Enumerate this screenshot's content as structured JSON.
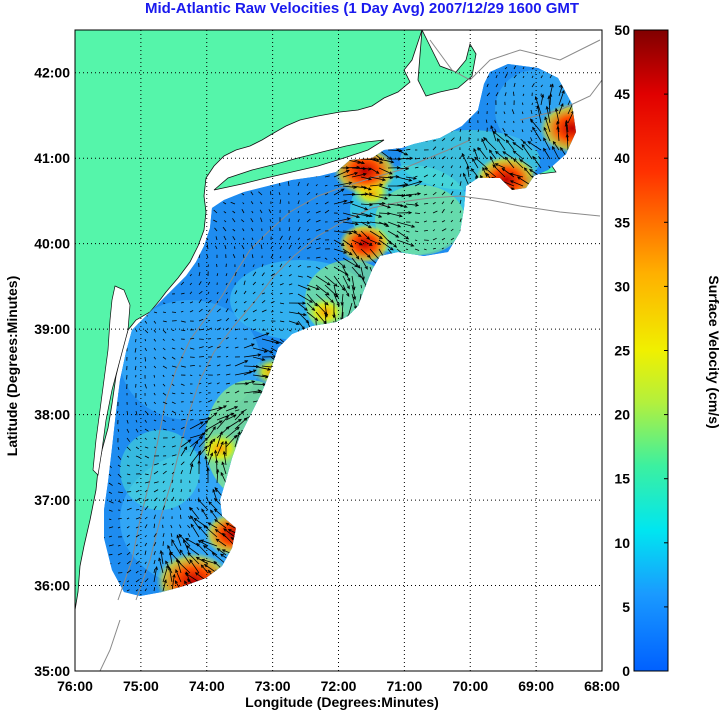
{
  "title": "Mid-Atlantic Raw Velocities (1 Day Avg) 2007/12/29 1600 GMT",
  "xlabel": "Longitude (Degrees:Minutes)",
  "ylabel": "Latitude (Degrees:Minutes)",
  "xticks": [
    "76:00",
    "75:00",
    "74:00",
    "73:00",
    "72:00",
    "71:00",
    "70:00",
    "69:00",
    "68:00"
  ],
  "yticks": [
    "35:00",
    "36:00",
    "37:00",
    "38:00",
    "39:00",
    "40:00",
    "41:00",
    "42:00"
  ],
  "colorbar": {
    "label": "Surface Velocity (cm/s)",
    "ticks": [
      "0",
      "5",
      "10",
      "15",
      "20",
      "25",
      "30",
      "35",
      "40",
      "45",
      "50"
    ],
    "range": [
      0,
      50
    ]
  },
  "colors": {
    "land": "#55f5aa",
    "water": "#ffffff",
    "title": "#1a1aee",
    "bathymetry": "#8a8a8a"
  },
  "chart_data": {
    "type": "heatmap",
    "x_range_deg_west": [
      76,
      68
    ],
    "y_range_deg_north": [
      35,
      42.5
    ],
    "grid": true,
    "hotspots_cm_s": [
      {
        "lon": 74.2,
        "lat": 36.05,
        "speed": 48
      },
      {
        "lon": 73.6,
        "lat": 36.6,
        "speed": 36
      },
      {
        "lon": 73.8,
        "lat": 37.6,
        "speed": 28
      },
      {
        "lon": 73.0,
        "lat": 38.5,
        "speed": 25
      },
      {
        "lon": 72.2,
        "lat": 39.2,
        "speed": 26
      },
      {
        "lon": 71.6,
        "lat": 40.0,
        "speed": 33
      },
      {
        "lon": 71.5,
        "lat": 40.6,
        "speed": 25
      },
      {
        "lon": 71.6,
        "lat": 40.85,
        "speed": 40
      },
      {
        "lon": 69.45,
        "lat": 40.75,
        "speed": 40
      },
      {
        "lon": 68.45,
        "lat": 41.35,
        "speed": 42
      }
    ]
  }
}
